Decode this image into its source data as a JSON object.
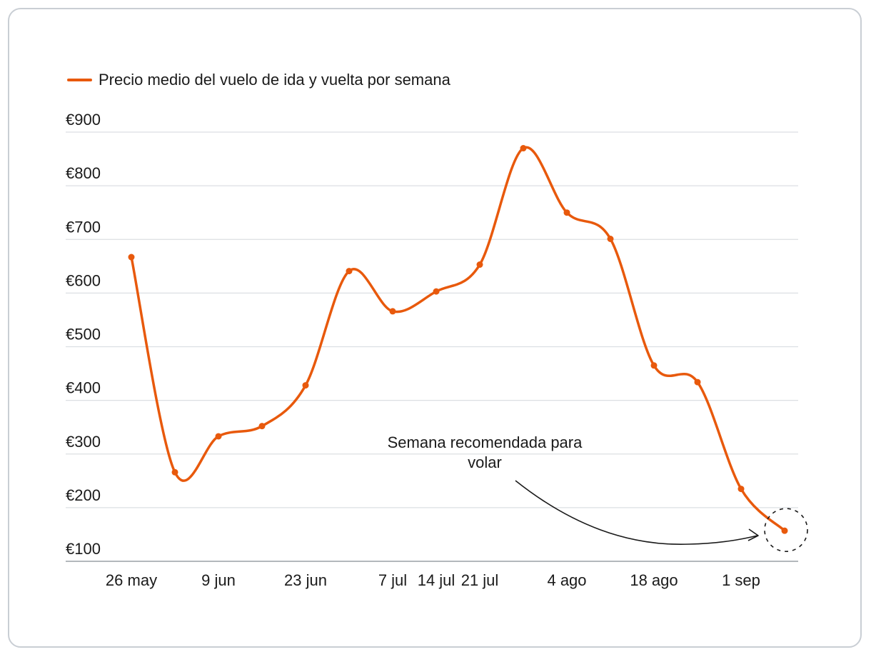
{
  "chart_data": {
    "type": "line",
    "title": "",
    "xlabel": "",
    "ylabel": "",
    "legend": {
      "label": "Precio medio del vuelo de ida y vuelta por semana",
      "position": "top-left"
    },
    "y_ticks": [
      "€100",
      "€200",
      "€300",
      "€400",
      "€500",
      "€600",
      "€700",
      "€800",
      "€900"
    ],
    "y_tick_values": [
      100,
      200,
      300,
      400,
      500,
      600,
      700,
      800,
      900
    ],
    "ylim": [
      100,
      900
    ],
    "x_tick_labels": [
      {
        "label": "26 may",
        "week": 0
      },
      {
        "label": "9 jun",
        "week": 2
      },
      {
        "label": "23 jun",
        "week": 4
      },
      {
        "label": "7 jul",
        "week": 6
      },
      {
        "label": "14 jul",
        "week": 7
      },
      {
        "label": "21 jul",
        "week": 8
      },
      {
        "label": "4 ago",
        "week": 10
      },
      {
        "label": "18 ago",
        "week": 12
      },
      {
        "label": "1 sep",
        "week": 14
      }
    ],
    "grid": true,
    "series": [
      {
        "name": "Precio medio del vuelo de ida y vuelta por semana",
        "color": "#e8590c",
        "values": [
          667,
          266,
          333,
          352,
          428,
          641,
          566,
          603,
          653,
          870,
          750,
          701,
          465,
          434,
          235,
          157
        ]
      }
    ],
    "annotation": {
      "text_lines": [
        "Semana recomendada para",
        "volar"
      ],
      "target_index": 15
    }
  }
}
